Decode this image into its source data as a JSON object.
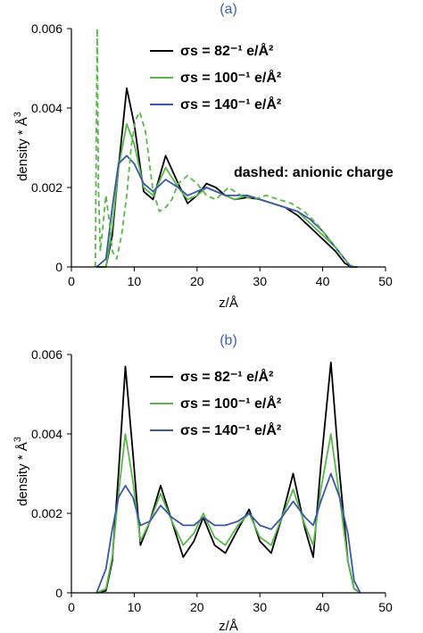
{
  "chart_data": [
    {
      "type": "line",
      "panel_label": "(a)",
      "xlabel": "z/Å",
      "ylabel": "density * Å",
      "ylabel_superscript": "3",
      "xlim": [
        0,
        50
      ],
      "ylim": [
        0,
        0.006
      ],
      "xticks": [
        "0",
        "10",
        "20",
        "30",
        "40",
        "50"
      ],
      "yticks": [
        "0",
        "0.002",
        "0.004",
        "0.006"
      ],
      "grid": false,
      "legend_position": "upper-center",
      "annotation": "dashed: anionic charge",
      "series": [
        {
          "name": "σs = 82⁻¹ e/Å²",
          "color": "#000000",
          "style": "solid",
          "x": [
            4.0,
            5.5,
            6.5,
            7.5,
            8.8,
            10.0,
            11.5,
            13.0,
            15.0,
            17.0,
            18.5,
            20.0,
            21.5,
            23.0,
            24.5,
            26.0,
            28.0,
            30.0,
            32.0,
            34.0,
            36.0,
            38.0,
            40.0,
            42.0,
            43.5,
            44.5,
            45.5
          ],
          "y": [
            0,
            0,
            0.0008,
            0.0025,
            0.0045,
            0.0036,
            0.0019,
            0.0017,
            0.0028,
            0.0021,
            0.0016,
            0.0018,
            0.0021,
            0.002,
            0.0018,
            0.0017,
            0.00175,
            0.0017,
            0.0016,
            0.0015,
            0.0013,
            0.001,
            0.0007,
            0.0004,
            0.0001,
            0,
            0
          ]
        },
        {
          "name": "σs = 100⁻¹ e/Å²",
          "color": "#59b84a",
          "style": "solid",
          "x": [
            4.0,
            5.5,
            6.5,
            7.5,
            8.8,
            10.0,
            11.5,
            13.0,
            15.0,
            17.0,
            18.5,
            20.0,
            21.5,
            23.0,
            24.5,
            26.0,
            28.0,
            30.0,
            32.0,
            34.0,
            36.0,
            38.0,
            40.0,
            42.0,
            43.5,
            44.5,
            45.5
          ],
          "y": [
            0,
            0,
            0.001,
            0.0025,
            0.0036,
            0.0031,
            0.002,
            0.0018,
            0.0025,
            0.002,
            0.0017,
            0.0018,
            0.002,
            0.0019,
            0.0018,
            0.0017,
            0.0018,
            0.0017,
            0.0016,
            0.0015,
            0.0014,
            0.0011,
            0.0008,
            0.0005,
            0.0002,
            0,
            0
          ]
        },
        {
          "name": "σs = 140⁻¹ e/Å²",
          "color": "#3b57a8",
          "style": "solid",
          "x": [
            4.0,
            5.5,
            6.5,
            7.5,
            8.8,
            10.0,
            11.5,
            13.0,
            15.0,
            17.0,
            18.5,
            20.0,
            21.5,
            23.0,
            24.5,
            26.0,
            28.0,
            30.0,
            32.0,
            34.0,
            36.0,
            38.0,
            40.0,
            42.0,
            43.5,
            44.5,
            45.5
          ],
          "y": [
            0,
            0.0002,
            0.0015,
            0.0026,
            0.0028,
            0.0026,
            0.0021,
            0.0019,
            0.0022,
            0.002,
            0.0018,
            0.0019,
            0.002,
            0.0019,
            0.0018,
            0.0018,
            0.0018,
            0.0017,
            0.0016,
            0.0015,
            0.0014,
            0.0012,
            0.0009,
            0.0005,
            0.0002,
            0,
            0
          ]
        },
        {
          "name": "",
          "color": "#59b84a",
          "style": "dashed",
          "x": [
            3.8,
            4.1,
            4.3,
            4.6,
            5.0,
            5.5,
            6.0,
            6.5,
            7.2,
            8.0,
            8.8,
            9.5,
            10.2,
            10.9,
            11.8,
            13.0,
            14.0,
            15.0,
            16.0,
            17.0,
            18.5,
            20.0,
            21.5,
            23.0,
            25.0,
            27.0,
            29.0,
            31.0,
            33.0,
            35.0,
            37.0,
            39.0,
            41.0,
            43.0,
            44.0,
            45.0
          ],
          "y": [
            0,
            0.006,
            0.002,
            0.0004,
            0.001,
            0.0018,
            0.0012,
            0.0004,
            0.0002,
            0.0008,
            0.0018,
            0.003,
            0.0037,
            0.0039,
            0.0034,
            0.0019,
            0.0014,
            0.0015,
            0.0017,
            0.0021,
            0.0023,
            0.0021,
            0.0018,
            0.0017,
            0.002,
            0.0018,
            0.0017,
            0.0018,
            0.0017,
            0.0016,
            0.0014,
            0.0011,
            0.0007,
            0.0003,
            0.0001,
            0
          ]
        }
      ]
    },
    {
      "type": "line",
      "panel_label": "(b)",
      "xlabel": "z/Å",
      "ylabel": "density * Å",
      "ylabel_superscript": "3",
      "xlim": [
        0,
        50
      ],
      "ylim": [
        0,
        0.006
      ],
      "xticks": [
        "0",
        "10",
        "20",
        "30",
        "40",
        "50"
      ],
      "yticks": [
        "0",
        "0.002",
        "0.004",
        "0.006"
      ],
      "grid": false,
      "legend_position": "upper-center",
      "series": [
        {
          "name": "σs = 82⁻¹ e/Å²",
          "color": "#000000",
          "style": "solid",
          "x": [
            4.0,
            5.5,
            6.5,
            7.5,
            8.6,
            9.8,
            11.0,
            12.5,
            14.2,
            16.0,
            17.8,
            19.5,
            21.0,
            22.8,
            24.5,
            26.5,
            28.3,
            30.0,
            31.8,
            33.5,
            35.3,
            37.2,
            38.5,
            39.7,
            41.3,
            42.7,
            44.0,
            45.0,
            46.0
          ],
          "y": [
            0,
            5e-05,
            0.0008,
            0.003,
            0.0057,
            0.0035,
            0.0012,
            0.0018,
            0.0027,
            0.0018,
            0.0009,
            0.0013,
            0.0019,
            0.0012,
            0.001,
            0.0016,
            0.0021,
            0.0013,
            0.001,
            0.0019,
            0.003,
            0.0016,
            0.0009,
            0.0032,
            0.0058,
            0.003,
            0.0008,
            0.0001,
            0
          ]
        },
        {
          "name": "σs = 100⁻¹ e/Å²",
          "color": "#59b84a",
          "style": "solid",
          "x": [
            4.0,
            5.5,
            6.5,
            7.5,
            8.6,
            9.8,
            11.0,
            12.5,
            14.2,
            16.0,
            17.8,
            19.5,
            21.0,
            22.8,
            24.5,
            26.5,
            28.3,
            30.0,
            31.8,
            33.5,
            35.3,
            37.2,
            38.5,
            39.7,
            41.3,
            42.7,
            44.0,
            45.0,
            46.0
          ],
          "y": [
            0,
            0.0001,
            0.0009,
            0.0025,
            0.004,
            0.0028,
            0.0013,
            0.0018,
            0.0025,
            0.0018,
            0.0012,
            0.0015,
            0.002,
            0.0014,
            0.0012,
            0.0017,
            0.002,
            0.0014,
            0.0012,
            0.0019,
            0.0026,
            0.0017,
            0.0012,
            0.0026,
            0.004,
            0.0024,
            0.0008,
            0.0001,
            0
          ]
        },
        {
          "name": "σs = 140⁻¹ e/Å²",
          "color": "#3b57a8",
          "style": "solid",
          "x": [
            4.0,
            5.5,
            6.5,
            7.5,
            8.6,
            9.8,
            11.0,
            12.5,
            14.2,
            16.0,
            17.8,
            19.5,
            21.0,
            22.8,
            24.5,
            26.5,
            28.3,
            30.0,
            31.8,
            33.5,
            35.3,
            37.2,
            38.5,
            39.7,
            41.3,
            42.7,
            44.0,
            45.0,
            46.0
          ],
          "y": [
            0,
            0.0006,
            0.0016,
            0.0024,
            0.0027,
            0.0024,
            0.0017,
            0.0018,
            0.0022,
            0.0019,
            0.0017,
            0.0017,
            0.0019,
            0.0017,
            0.0017,
            0.0018,
            0.002,
            0.0017,
            0.0016,
            0.0019,
            0.0023,
            0.0019,
            0.0017,
            0.0023,
            0.003,
            0.0024,
            0.0015,
            0.0003,
            0
          ]
        }
      ]
    }
  ]
}
